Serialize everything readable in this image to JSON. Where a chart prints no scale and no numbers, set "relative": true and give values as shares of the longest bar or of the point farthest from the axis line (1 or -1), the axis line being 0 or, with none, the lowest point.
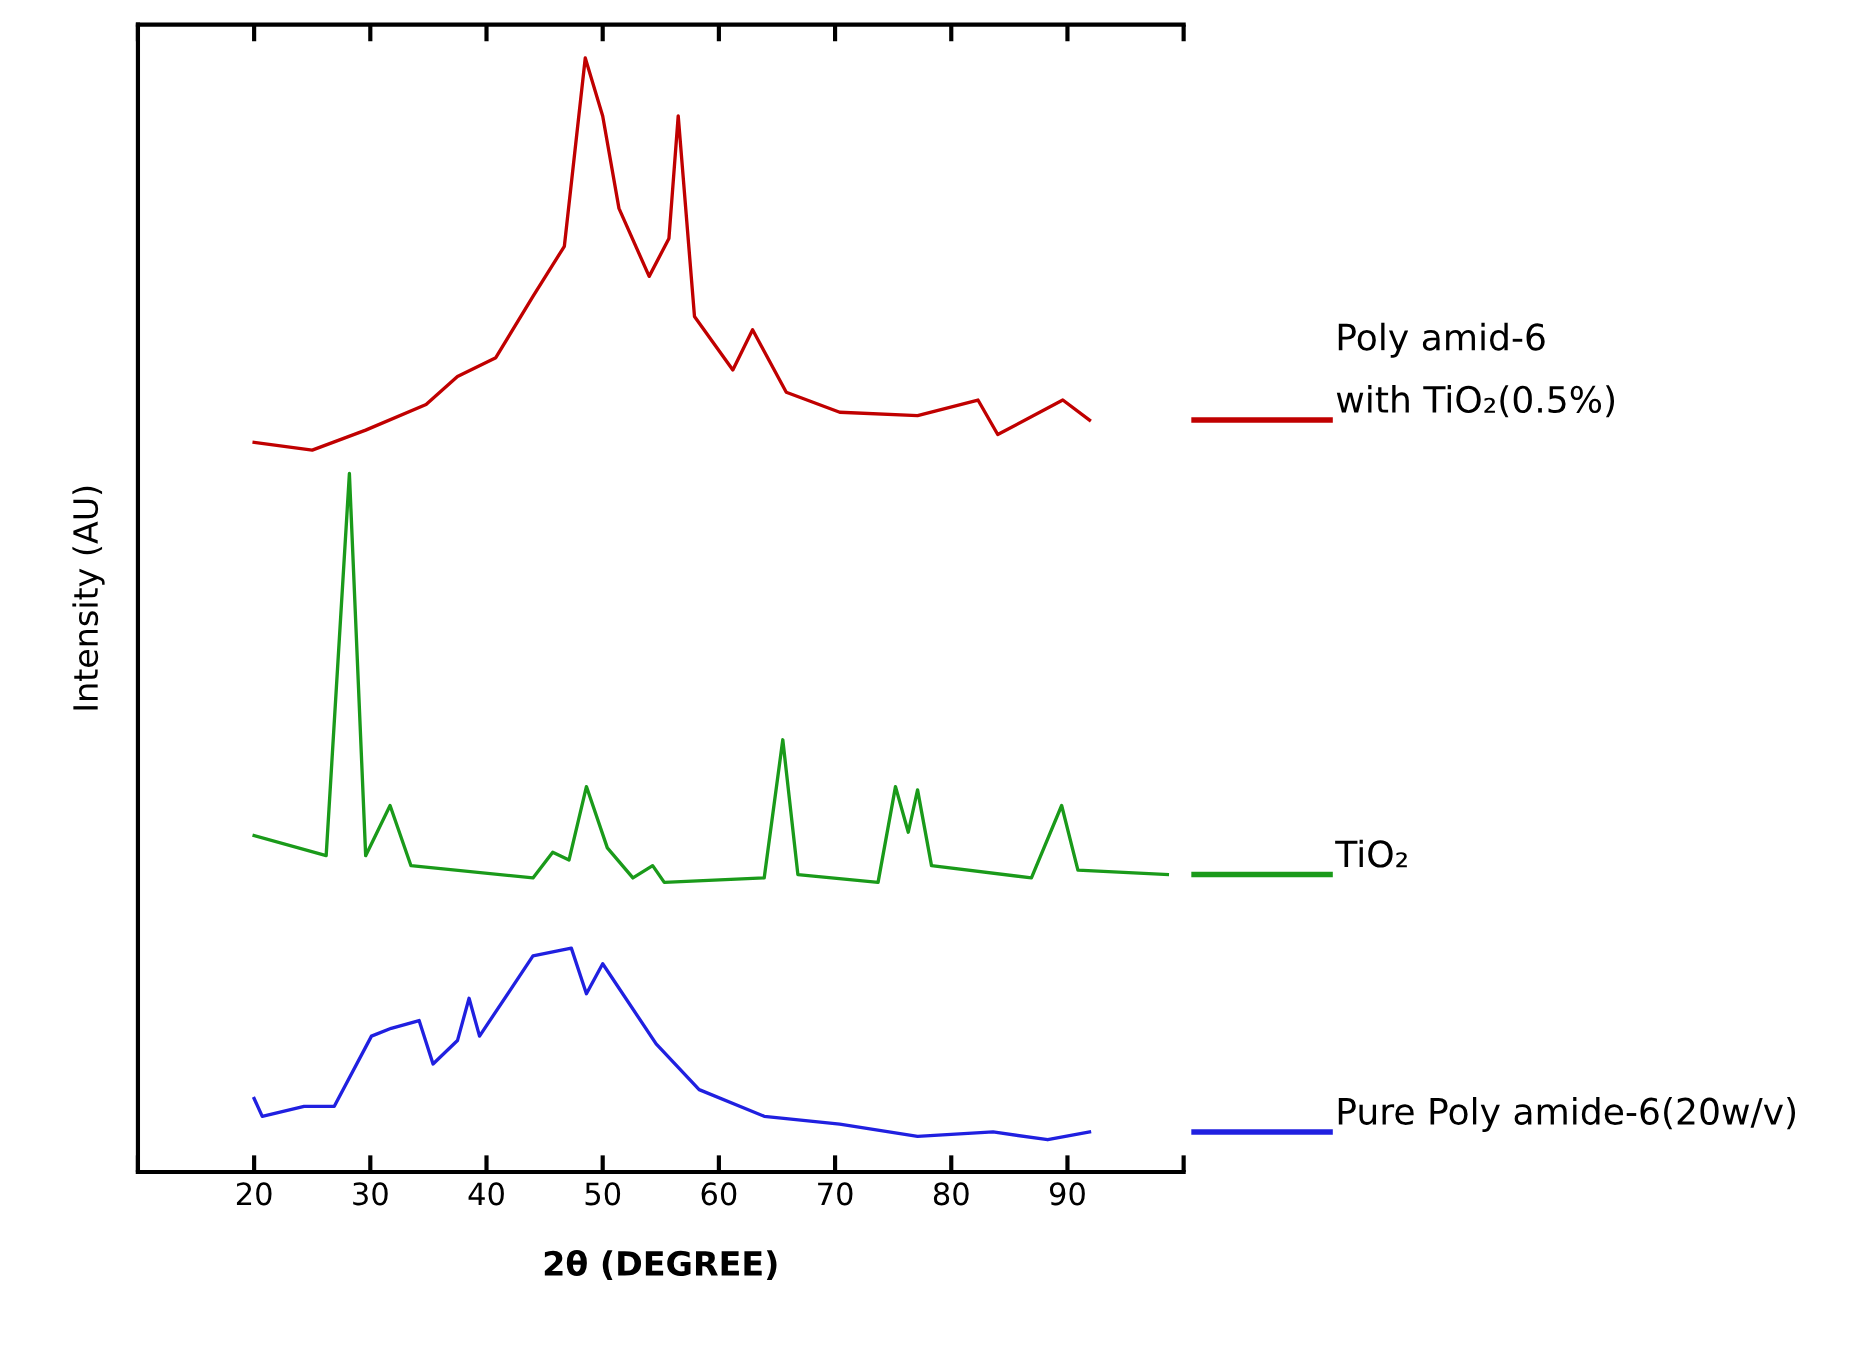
{
  "chart_data": {
    "type": "line",
    "relative": true,
    "xlabel": "2θ (DEGREE)",
    "ylabel": "Intensity (AU)",
    "xlim": [
      10,
      100
    ],
    "xticks": [
      {
        "value": 10,
        "label": null
      },
      20,
      30,
      40,
      50,
      60,
      70,
      80,
      90,
      {
        "value": 100,
        "label": null
      }
    ],
    "legend": "right",
    "grid": false,
    "series": [
      {
        "name": "Poly amid-6\nwith TiO₂(0.5%)",
        "color": "#c00000",
        "x": [
          20,
          25,
          29.6,
          34.8,
          37.5,
          40.8,
          44,
          46.7,
          48.5,
          50,
          51.4,
          54,
          55.7,
          56.5,
          57.9,
          61.2,
          62.9,
          65.8,
          70.4,
          77.1,
          82.3,
          84,
          89.6,
          91.9
        ],
        "values": [
          0.655,
          0.648,
          0.666,
          0.689,
          0.714,
          0.731,
          0.786,
          0.831,
          1.0,
          0.948,
          0.865,
          0.804,
          0.838,
          0.948,
          0.768,
          0.72,
          0.756,
          0.7,
          0.682,
          0.679,
          0.693,
          0.662,
          0.693,
          0.675
        ]
      },
      {
        "name": "TiO₂",
        "color": "#1a9a1a",
        "x": [
          20,
          26.2,
          28.2,
          29.6,
          31.7,
          33.5,
          44,
          45.7,
          47.1,
          48.6,
          50.4,
          52.6,
          54.3,
          55.3,
          63.9,
          65.5,
          66.8,
          73.7,
          75.2,
          76.3,
          77.1,
          78.3,
          86.9,
          89.5,
          90.9,
          98.6
        ],
        "values": [
          0.302,
          0.284,
          0.627,
          0.284,
          0.329,
          0.275,
          0.264,
          0.287,
          0.28,
          0.346,
          0.291,
          0.264,
          0.275,
          0.26,
          0.264,
          0.388,
          0.267,
          0.26,
          0.346,
          0.305,
          0.343,
          0.275,
          0.264,
          0.329,
          0.271,
          0.267
        ]
      },
      {
        "name": "Pure Poly amide-6(20w/v)",
        "color": "#2020e0",
        "x": [
          20,
          20.7,
          24.3,
          26.9,
          30.1,
          31.8,
          34.2,
          35.4,
          37.5,
          38.5,
          39.4,
          44,
          47.3,
          48.6,
          50,
          54.6,
          58.3,
          63.9,
          70.4,
          77.1,
          83.6,
          88.3,
          91.9
        ],
        "values": [
          0.066,
          0.05,
          0.059,
          0.059,
          0.122,
          0.129,
          0.136,
          0.097,
          0.118,
          0.156,
          0.122,
          0.194,
          0.201,
          0.16,
          0.187,
          0.115,
          0.074,
          0.05,
          0.043,
          0.032,
          0.036,
          0.029,
          0.036
        ]
      }
    ]
  }
}
